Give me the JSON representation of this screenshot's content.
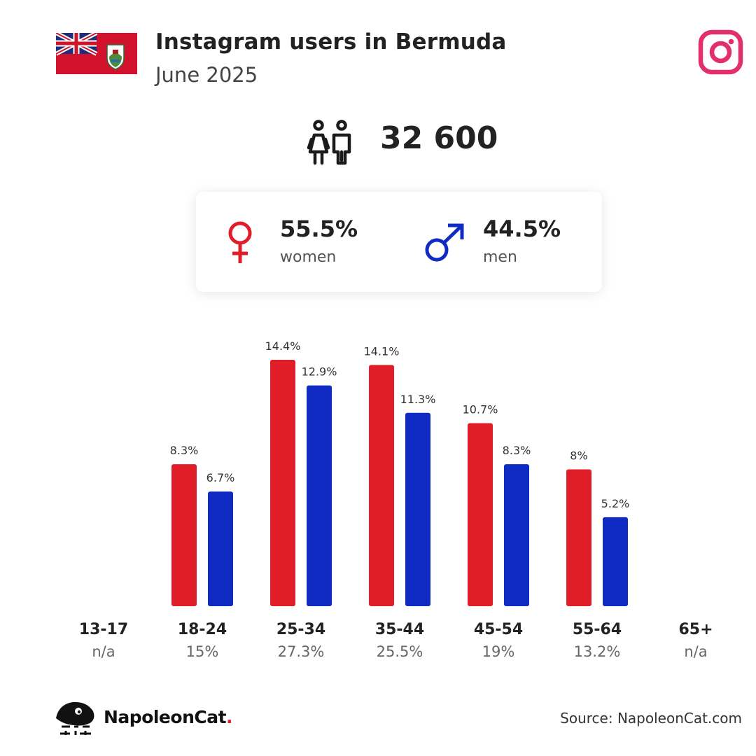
{
  "header": {
    "title": "Instagram users in Bermuda",
    "subtitle": "June 2025"
  },
  "total_users": "32 600",
  "gender": {
    "women": {
      "percent": "55.5%",
      "label": "women",
      "color": "#e01e29"
    },
    "men": {
      "percent": "44.5%",
      "label": "men",
      "color": "#0f2bc4"
    }
  },
  "icons": {
    "flag": "bermuda-flag-icon",
    "platform": "instagram-icon",
    "users": "users-icon",
    "female": "female-symbol-icon",
    "male": "male-symbol-icon",
    "brand": "napoleoncat-icon"
  },
  "chart_data": {
    "type": "bar",
    "categories": [
      "13-17",
      "18-24",
      "25-34",
      "35-44",
      "45-54",
      "55-64",
      "65+"
    ],
    "category_totals": [
      "n/a",
      "15%",
      "27.3%",
      "25.5%",
      "19%",
      "13.2%",
      "n/a"
    ],
    "series": [
      {
        "color": "#e01e29",
        "values": [
          null,
          8.3,
          14.4,
          14.1,
          10.7,
          8,
          null
        ],
        "labels": [
          "",
          "8.3%",
          "14.4%",
          "14.1%",
          "10.7%",
          "8%",
          ""
        ]
      },
      {
        "color": "#0f2bc4",
        "values": [
          null,
          6.7,
          12.9,
          11.3,
          8.3,
          5.2,
          null
        ],
        "labels": [
          "",
          "6.7%",
          "12.9%",
          "11.3%",
          "8.3%",
          "5.2%",
          ""
        ]
      }
    ],
    "ylim": [
      0,
      14.4
    ]
  },
  "footer": {
    "brand": "NapoleonCat",
    "brand_dot": ".",
    "source": "Source: NapoleonCat.com"
  }
}
